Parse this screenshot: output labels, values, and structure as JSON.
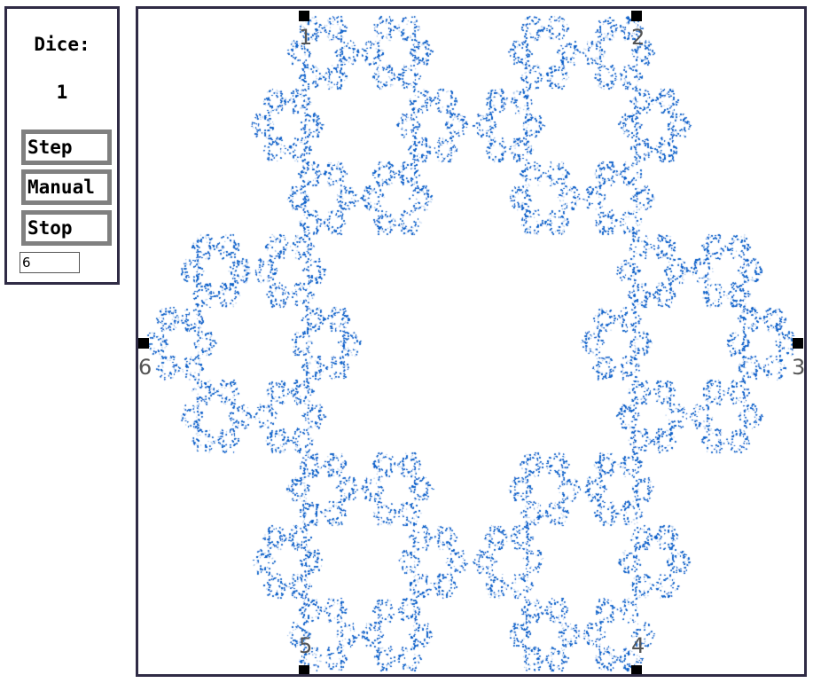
{
  "panel": {
    "dice_label": "Dice:",
    "dice_value": "1",
    "buttons": {
      "step": "Step",
      "manual": "Manual",
      "stop": "Stop"
    },
    "sides_input_value": "6"
  },
  "canvas": {
    "point_color": "#0a5fc8",
    "vertex_labels": [
      "1",
      "2",
      "3",
      "4",
      "5",
      "6"
    ]
  }
}
